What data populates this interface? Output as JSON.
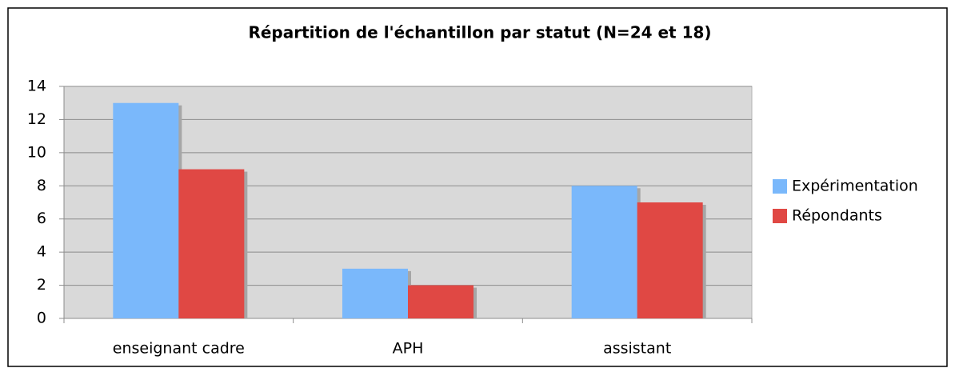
{
  "chart_data": {
    "type": "bar",
    "title": "Répartition de l'échantillon par statut (N=24 et 18)",
    "categories": [
      "enseignant cadre",
      "APH",
      "assistant"
    ],
    "series": [
      {
        "name": "Expérimentation",
        "color": "#7ab8fb",
        "values": [
          13,
          3,
          8
        ]
      },
      {
        "name": "Répondants",
        "color": "#e04844",
        "values": [
          9,
          2,
          7
        ]
      }
    ],
    "ylim": [
      0,
      14
    ],
    "yticks": [
      0,
      2,
      4,
      6,
      8,
      10,
      12,
      14
    ],
    "grid": true,
    "legend": "right"
  }
}
